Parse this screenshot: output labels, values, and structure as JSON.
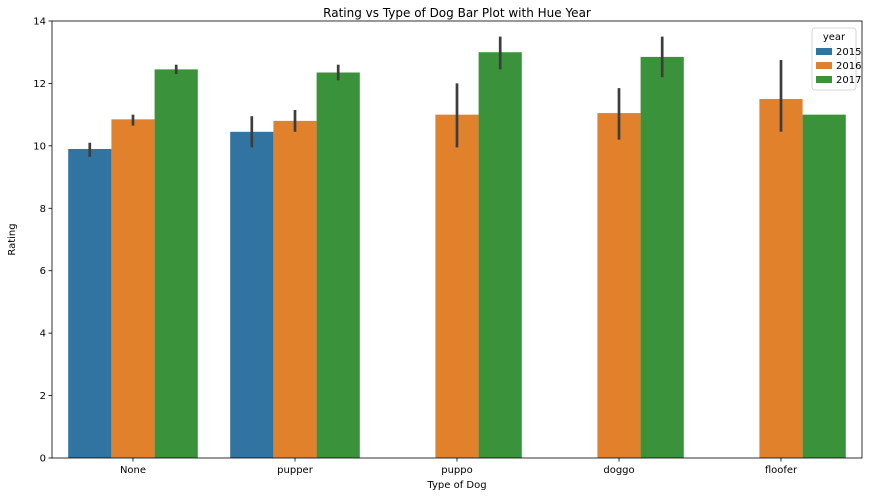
{
  "chart_data": {
    "type": "bar",
    "title": "Rating vs Type of Dog Bar Plot with Hue Year",
    "xlabel": "Type of Dog",
    "ylabel": "Rating",
    "categories": [
      "None",
      "pupper",
      "puppo",
      "doggo",
      "floofer"
    ],
    "ylim": [
      0,
      14
    ],
    "yticks": [
      0,
      2,
      4,
      6,
      8,
      10,
      12,
      14
    ],
    "grid": false,
    "legend": {
      "title": "year",
      "placement": "top-right"
    },
    "series": [
      {
        "name": "2015",
        "color": "#3274a1",
        "values": [
          9.9,
          10.45,
          null,
          null,
          null
        ],
        "error_low": [
          9.65,
          9.95,
          null,
          null,
          null
        ],
        "error_high": [
          10.1,
          10.95,
          null,
          null,
          null
        ]
      },
      {
        "name": "2016",
        "color": "#e1812c",
        "values": [
          10.85,
          10.8,
          11.0,
          11.05,
          11.5
        ],
        "error_low": [
          10.65,
          10.45,
          9.95,
          10.2,
          10.45
        ],
        "error_high": [
          11.0,
          11.15,
          12.0,
          11.85,
          12.75
        ]
      },
      {
        "name": "2017",
        "color": "#3a923a",
        "values": [
          12.45,
          12.35,
          13.0,
          12.85,
          11.0
        ],
        "error_low": [
          12.3,
          12.1,
          12.45,
          12.2,
          11.0
        ],
        "error_high": [
          12.6,
          12.6,
          13.5,
          13.5,
          11.0
        ]
      }
    ]
  }
}
